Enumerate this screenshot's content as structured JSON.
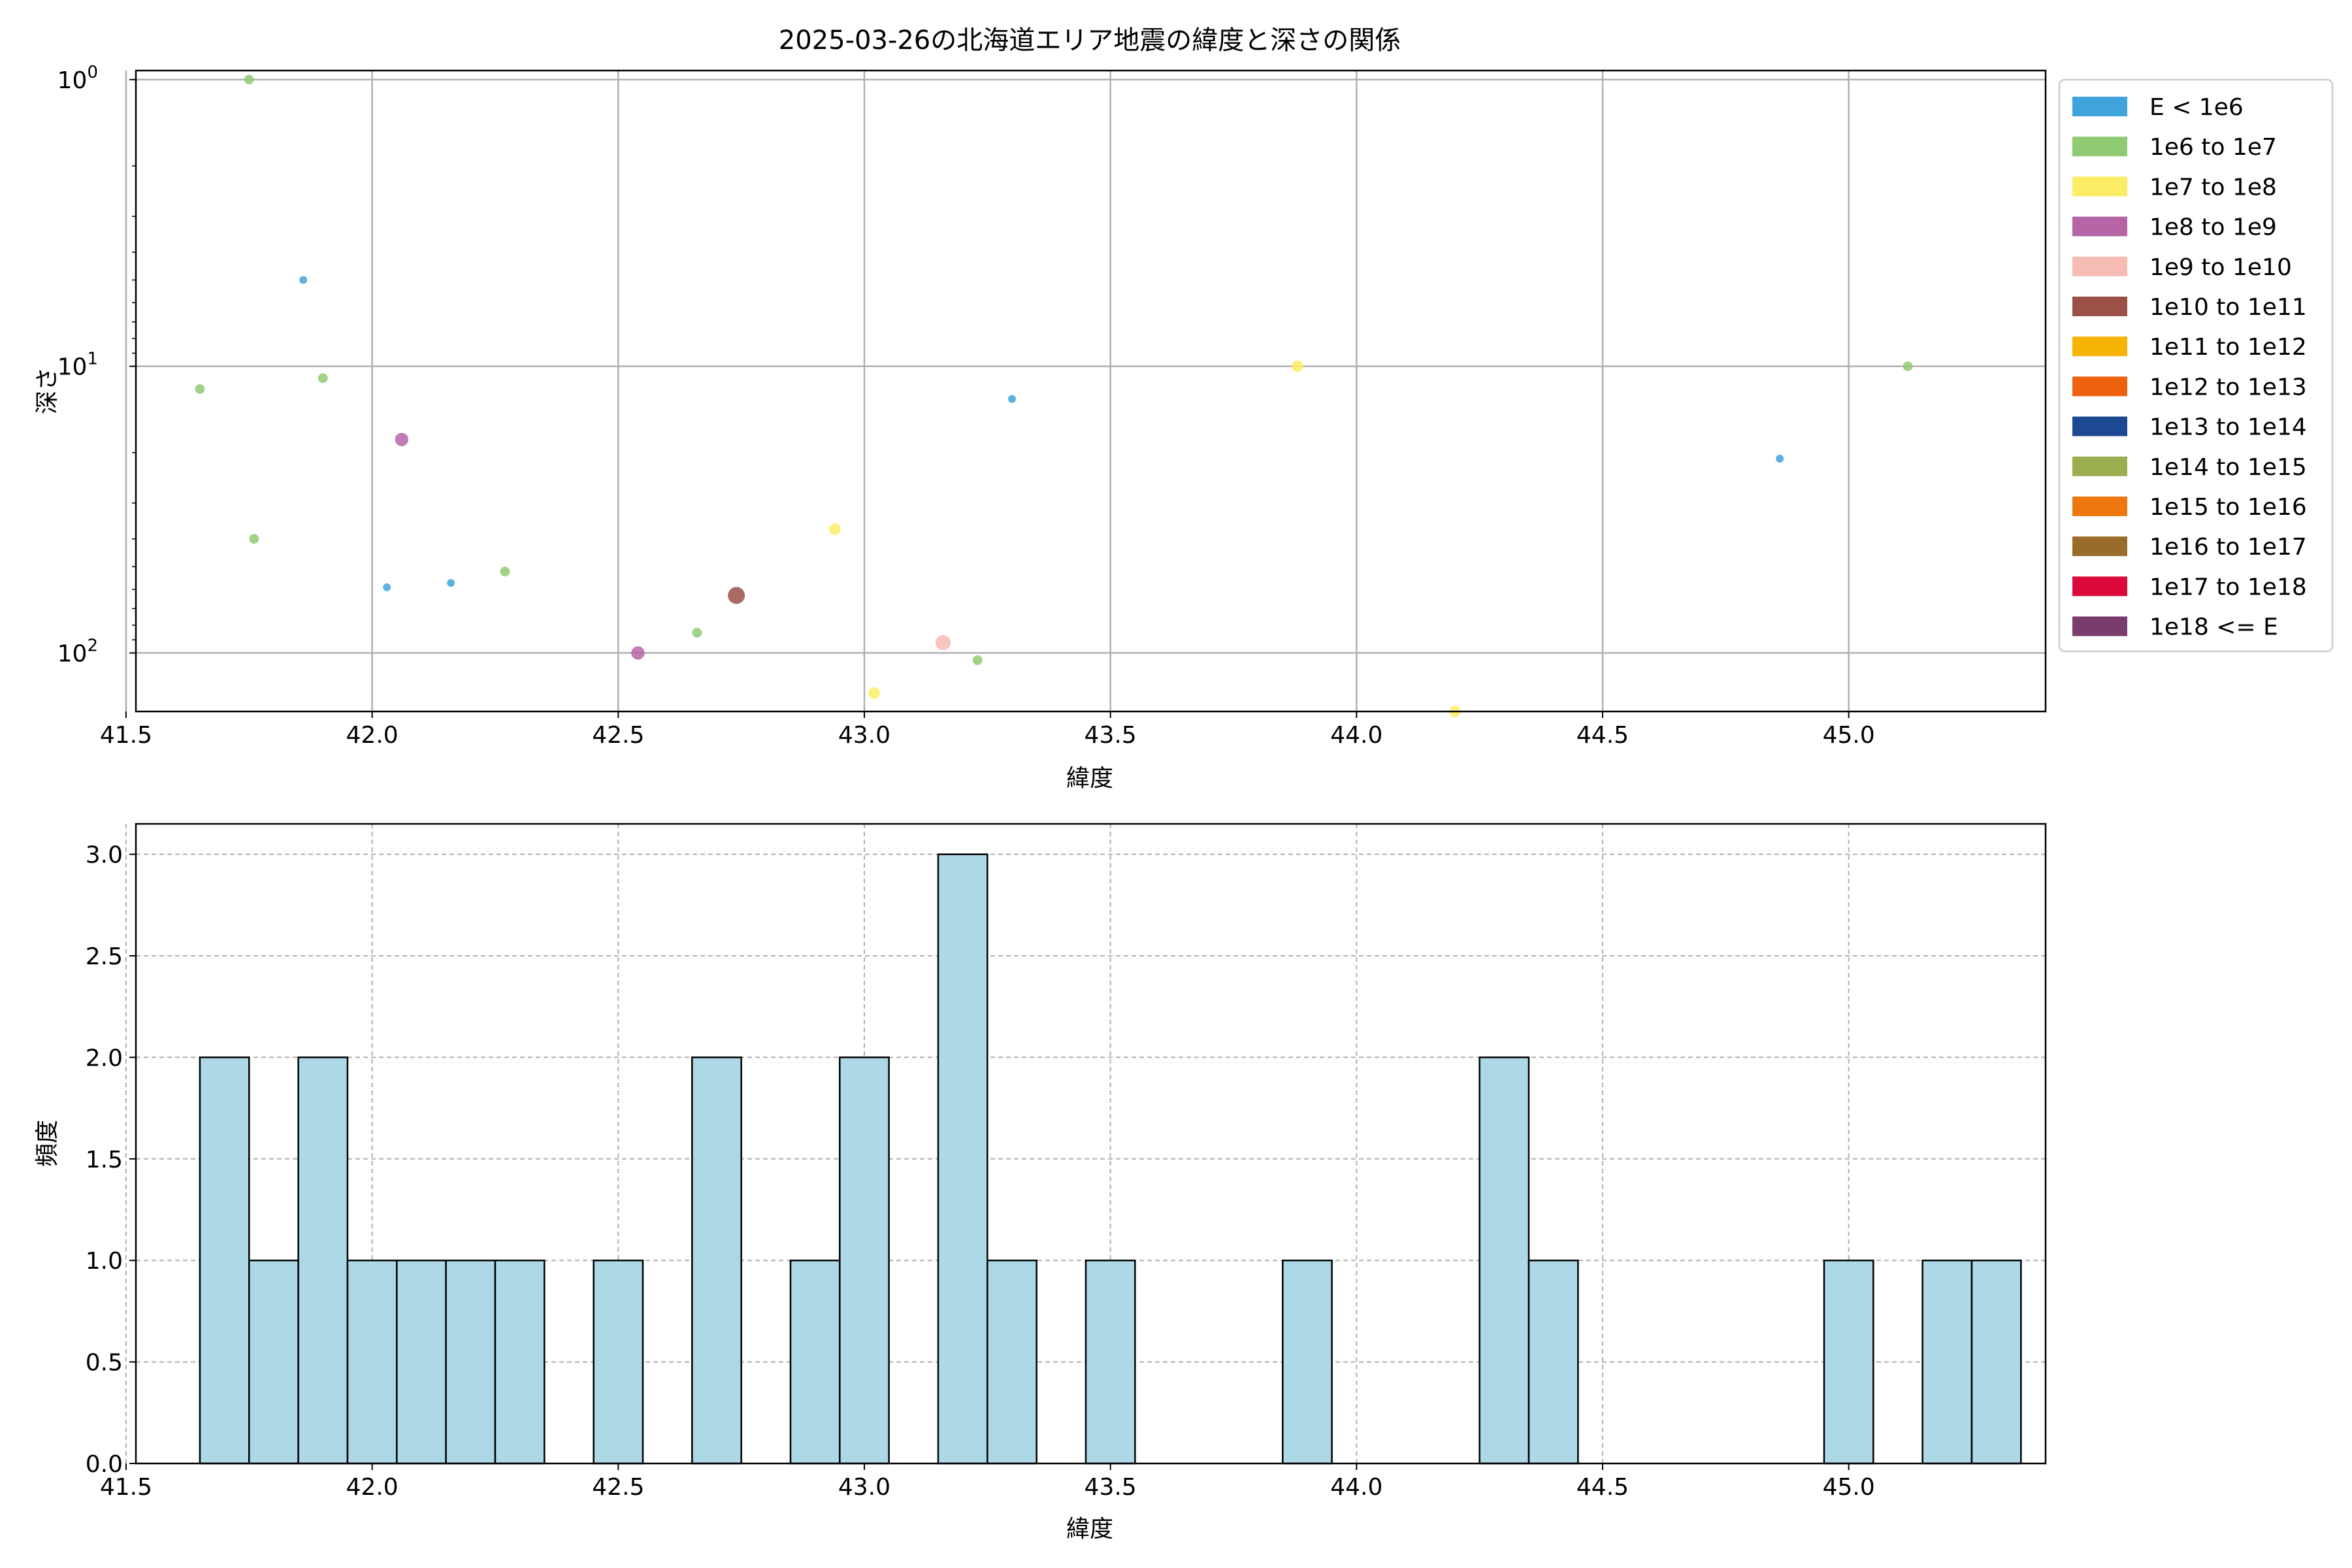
{
  "chart_data": [
    {
      "type": "scatter",
      "title": "2025-03-26の北海道エリア地震の緯度と深さの関係",
      "xlabel": "緯度",
      "ylabel": "深さ",
      "y_scale": "log",
      "y_inverted": true,
      "xlim": [
        41.52,
        45.4
      ],
      "ylim_depth": [
        0.93,
        160
      ],
      "grid": true,
      "xticks": [
        41.5,
        42.0,
        42.5,
        43.0,
        43.5,
        44.0,
        44.5,
        45.0
      ],
      "yticks": [
        {
          "base": "10",
          "exp": "0",
          "value": 1
        },
        {
          "base": "10",
          "exp": "1",
          "value": 10
        },
        {
          "base": "10",
          "exp": "2",
          "value": 100
        }
      ],
      "legend_placement": "outside-right",
      "legend": [
        {
          "label": "E < 1e6",
          "color": "#3fa4db"
        },
        {
          "label": "1e6 to 1e7",
          "color": "#8fcb72"
        },
        {
          "label": "1e7 to 1e8",
          "color": "#fded66"
        },
        {
          "label": "1e8 to 1e9",
          "color": "#b565a6"
        },
        {
          "label": "1e9 to 1e10",
          "color": "#f6bcb4"
        },
        {
          "label": "1e10 to 1e11",
          "color": "#9b5048"
        },
        {
          "label": "1e11 to 1e12",
          "color": "#f7b406"
        },
        {
          "label": "1e12 to 1e13",
          "color": "#ee620f"
        },
        {
          "label": "1e13 to 1e14",
          "color": "#1d4992"
        },
        {
          "label": "1e14 to 1e15",
          "color": "#9aae50"
        },
        {
          "label": "1e15 to 1e16",
          "color": "#ee780f"
        },
        {
          "label": "1e16 to 1e17",
          "color": "#9a6c2c"
        },
        {
          "label": "1e17 to 1e18",
          "color": "#dc0a3b"
        },
        {
          "label": "1e18 <= E",
          "color": "#7a3c6c"
        }
      ],
      "points": [
        {
          "lat": 41.75,
          "depth": 1,
          "cls": 1
        },
        {
          "lat": 41.86,
          "depth": 5,
          "cls": 0
        },
        {
          "lat": 41.65,
          "depth": 12,
          "cls": 1
        },
        {
          "lat": 41.9,
          "depth": 11,
          "cls": 1
        },
        {
          "lat": 42.06,
          "depth": 18,
          "cls": 3
        },
        {
          "lat": 41.76,
          "depth": 40,
          "cls": 1
        },
        {
          "lat": 42.03,
          "depth": 59,
          "cls": 0
        },
        {
          "lat": 42.16,
          "depth": 57,
          "cls": 0
        },
        {
          "lat": 42.27,
          "depth": 52,
          "cls": 1
        },
        {
          "lat": 42.54,
          "depth": 100,
          "cls": 3
        },
        {
          "lat": 42.66,
          "depth": 85,
          "cls": 1
        },
        {
          "lat": 42.74,
          "depth": 63,
          "cls": 5
        },
        {
          "lat": 42.94,
          "depth": 37,
          "cls": 2
        },
        {
          "lat": 43.02,
          "depth": 138,
          "cls": 2
        },
        {
          "lat": 43.16,
          "depth": 92,
          "cls": 4
        },
        {
          "lat": 43.23,
          "depth": 106,
          "cls": 1
        },
        {
          "lat": 43.3,
          "depth": 13,
          "cls": 0
        },
        {
          "lat": 43.88,
          "depth": 10,
          "cls": 2
        },
        {
          "lat": 44.2,
          "depth": 160,
          "cls": 2
        },
        {
          "lat": 44.86,
          "depth": 21,
          "cls": 0
        },
        {
          "lat": 45.12,
          "depth": 10,
          "cls": 1
        }
      ]
    },
    {
      "type": "bar",
      "xlabel": "緯度",
      "ylabel": "頻度",
      "xlim": [
        41.52,
        45.4
      ],
      "ylim": [
        0,
        3.15
      ],
      "grid": true,
      "xticks": [
        41.5,
        42.0,
        42.5,
        43.0,
        43.5,
        44.0,
        44.5,
        45.0
      ],
      "yticks": [
        0.0,
        0.5,
        1.0,
        1.5,
        2.0,
        2.5,
        3.0
      ],
      "bar_color": "#add8e6",
      "edge_color": "#000000",
      "bins_start": 41.65,
      "bin_width": 0.1,
      "values": [
        2,
        1,
        2,
        1,
        1,
        1,
        1,
        0,
        1,
        0,
        2,
        0,
        1,
        2,
        0,
        3,
        1,
        0,
        1,
        0,
        0,
        0,
        1,
        0,
        0,
        0,
        2,
        1,
        0,
        0,
        0,
        0,
        0,
        1,
        0,
        1,
        1
      ]
    }
  ]
}
